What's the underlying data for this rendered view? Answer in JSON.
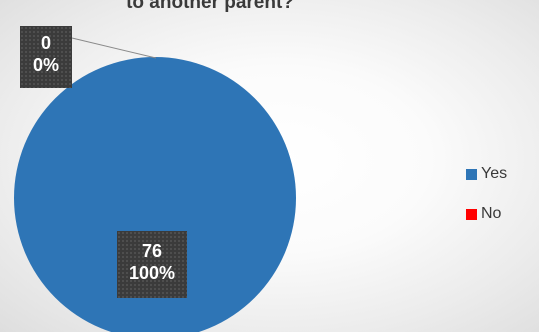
{
  "chart_data": {
    "type": "pie",
    "title": "to another parent?",
    "categories": [
      "Yes",
      "No"
    ],
    "values": [
      76,
      0
    ],
    "percentages": [
      "100%",
      "0%"
    ],
    "colors": {
      "Yes": "#2e75b6",
      "No": "#ff0000"
    },
    "legend_position": "right"
  },
  "labels": {
    "yes_value": "76",
    "yes_percent": "100%",
    "no_value": "0",
    "no_percent": "0%"
  },
  "legend": [
    {
      "label": "Yes"
    },
    {
      "label": "No"
    }
  ]
}
